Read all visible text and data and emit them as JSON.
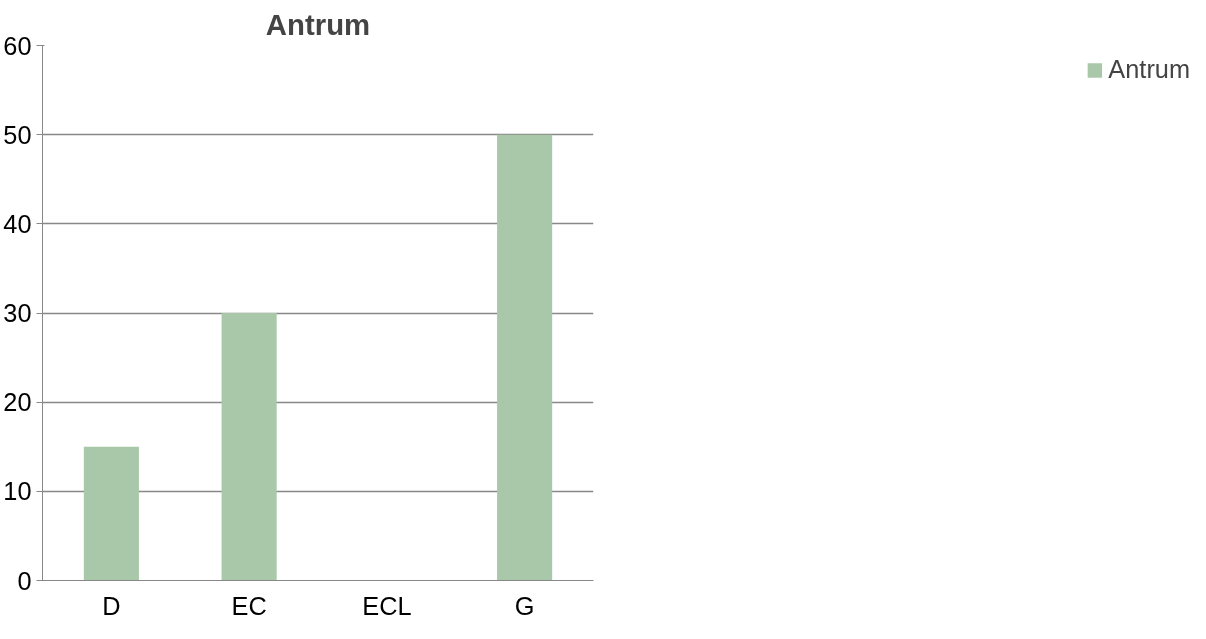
{
  "chart_data": {
    "type": "bar",
    "title": "Antrum",
    "categories": [
      "D",
      "EC",
      "ECL",
      "G"
    ],
    "series": [
      {
        "name": "Antrum",
        "color": "#a9c8a9",
        "values": [
          15,
          30,
          0,
          50
        ]
      }
    ],
    "ylim": [
      0,
      60
    ],
    "yticks": [
      0,
      10,
      20,
      30,
      40,
      50,
      60
    ],
    "grid": "y",
    "legend": "right"
  }
}
